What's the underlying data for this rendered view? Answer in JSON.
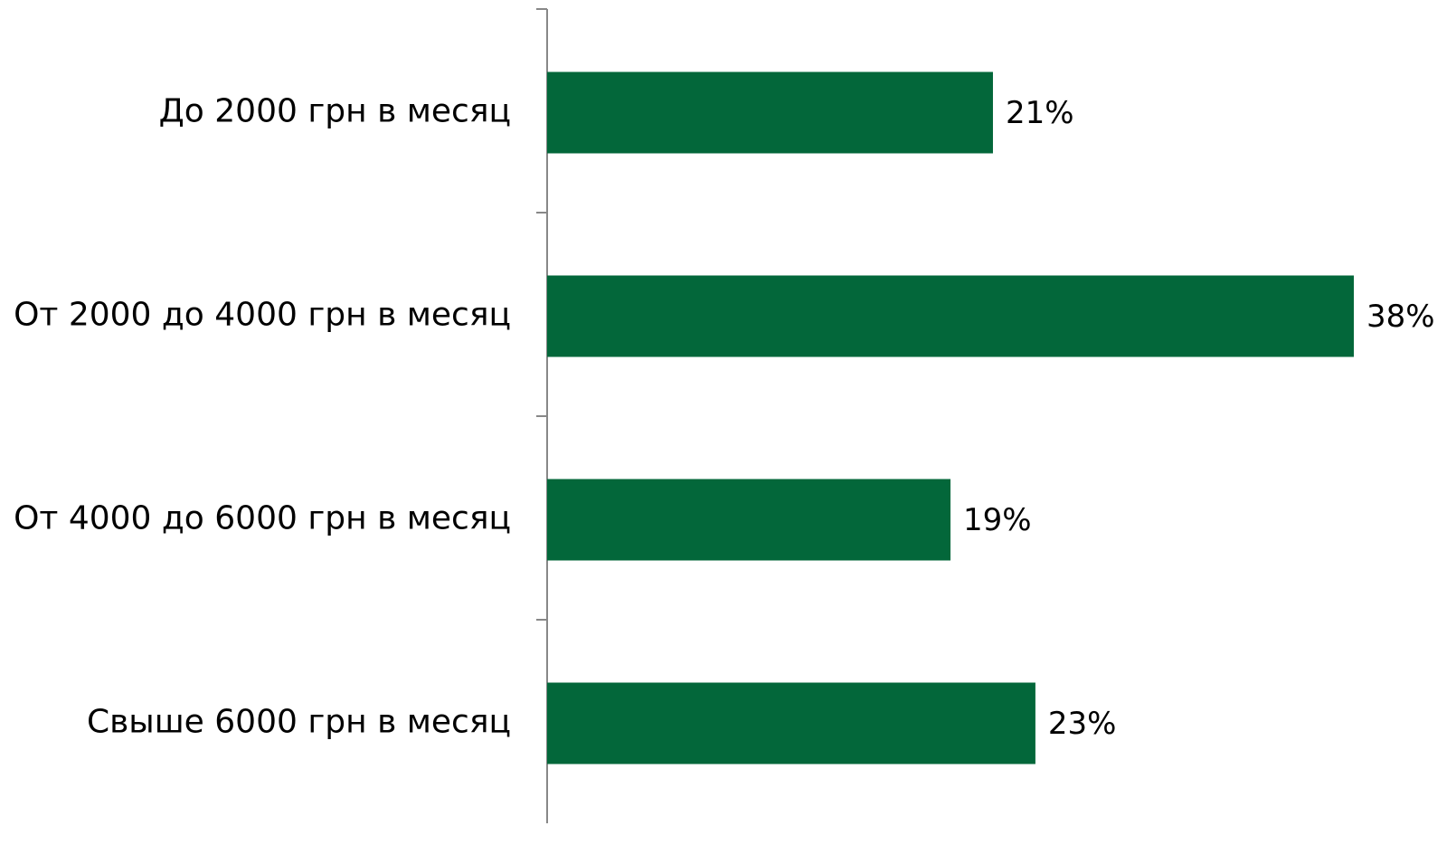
{
  "chart_data": {
    "type": "barh",
    "categories": [
      "До 2000 грн в месяц",
      "От 2000 до 4000 грн в месяц",
      "От 4000 до 6000 грн в месяц",
      "Свыше 6000 грн в месяц"
    ],
    "values": [
      21,
      38,
      19,
      23
    ],
    "value_labels": [
      "21%",
      "38%",
      "19%",
      "23%"
    ],
    "color": "#03673a",
    "xlim": [
      0,
      40
    ]
  }
}
